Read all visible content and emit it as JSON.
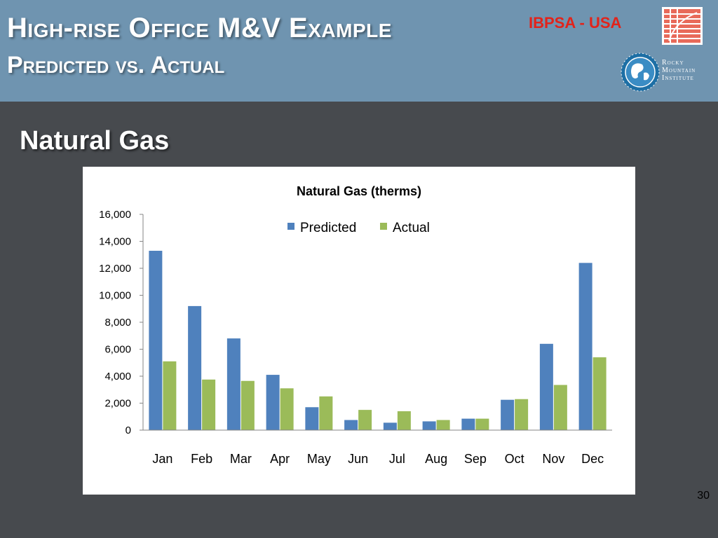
{
  "slide": {
    "title": "High-rise Office M&V Example",
    "subtitle": "Predicted vs. Actual",
    "org_label": "IBPSA - USA",
    "rmi_logo_text": [
      "Rocky",
      "Mountain",
      "Institute"
    ],
    "section_title": "Natural Gas",
    "page_number": "30"
  },
  "colors": {
    "header_bg": "#6f94b0",
    "body_bg": "#474a4e",
    "predicted": "#4f81bd",
    "actual": "#9bbb59",
    "org_label": "#e2231a"
  },
  "chart_data": {
    "type": "bar",
    "title": "Natural Gas (therms)",
    "categories": [
      "Jan",
      "Feb",
      "Mar",
      "Apr",
      "May",
      "Jun",
      "Jul",
      "Aug",
      "Sep",
      "Oct",
      "Nov",
      "Dec"
    ],
    "series": [
      {
        "name": "Predicted",
        "values": [
          13300,
          9200,
          6800,
          4100,
          1700,
          750,
          550,
          650,
          850,
          2250,
          6400,
          12400
        ]
      },
      {
        "name": "Actual",
        "values": [
          5100,
          3750,
          3650,
          3100,
          2500,
          1500,
          1400,
          750,
          850,
          2300,
          3350,
          5400
        ]
      }
    ],
    "ylim": [
      0,
      16000
    ],
    "yticks": [
      "0",
      "2,000",
      "4,000",
      "6,000",
      "8,000",
      "10,000",
      "12,000",
      "14,000",
      "16,000"
    ],
    "ytick_values": [
      0,
      2000,
      4000,
      6000,
      8000,
      10000,
      12000,
      14000,
      16000
    ],
    "legend_position": "top",
    "grid": false
  }
}
